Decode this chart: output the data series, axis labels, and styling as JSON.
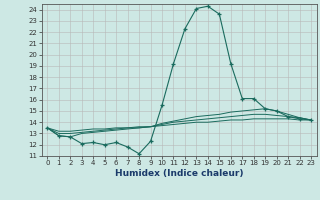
{
  "xlabel": "Humidex (Indice chaleur)",
  "bg_color": "#cde8e4",
  "grid_color": "#b8b8b8",
  "line_color": "#1a6b5e",
  "xlim": [
    -0.5,
    23.5
  ],
  "ylim": [
    11,
    24.5
  ],
  "yticks": [
    11,
    12,
    13,
    14,
    15,
    16,
    17,
    18,
    19,
    20,
    21,
    22,
    23,
    24
  ],
  "xticks": [
    0,
    1,
    2,
    3,
    4,
    5,
    6,
    7,
    8,
    9,
    10,
    11,
    12,
    13,
    14,
    15,
    16,
    17,
    18,
    19,
    20,
    21,
    22,
    23
  ],
  "line1_x": [
    0,
    1,
    2,
    3,
    4,
    5,
    6,
    7,
    8,
    9,
    10,
    11,
    12,
    13,
    14,
    15,
    16,
    17,
    18,
    19,
    20,
    21,
    22,
    23
  ],
  "line1_y": [
    13.5,
    12.8,
    12.7,
    12.1,
    12.2,
    12.0,
    12.2,
    11.8,
    11.2,
    12.3,
    15.5,
    19.2,
    22.3,
    24.1,
    24.3,
    23.6,
    19.2,
    16.1,
    16.1,
    15.2,
    15.0,
    14.5,
    14.3,
    14.2
  ],
  "line2_x": [
    0,
    1,
    2,
    3,
    4,
    5,
    6,
    7,
    8,
    9,
    10,
    11,
    12,
    13,
    14,
    15,
    16,
    17,
    18,
    19,
    20,
    21,
    22,
    23
  ],
  "line2_y": [
    13.5,
    12.8,
    12.7,
    13.0,
    13.1,
    13.2,
    13.3,
    13.4,
    13.5,
    13.6,
    13.9,
    14.1,
    14.3,
    14.5,
    14.6,
    14.7,
    14.9,
    15.0,
    15.1,
    15.2,
    15.0,
    14.7,
    14.4,
    14.2
  ],
  "line3_x": [
    0,
    1,
    2,
    3,
    4,
    5,
    6,
    7,
    8,
    9,
    10,
    11,
    12,
    13,
    14,
    15,
    16,
    17,
    18,
    19,
    20,
    21,
    22,
    23
  ],
  "line3_y": [
    13.5,
    13.0,
    13.0,
    13.1,
    13.2,
    13.3,
    13.4,
    13.5,
    13.5,
    13.6,
    13.8,
    14.0,
    14.1,
    14.2,
    14.3,
    14.4,
    14.5,
    14.6,
    14.7,
    14.7,
    14.6,
    14.5,
    14.4,
    14.2
  ],
  "line4_x": [
    0,
    1,
    2,
    3,
    4,
    5,
    6,
    7,
    8,
    9,
    10,
    11,
    12,
    13,
    14,
    15,
    16,
    17,
    18,
    19,
    20,
    21,
    22,
    23
  ],
  "line4_y": [
    13.5,
    13.2,
    13.2,
    13.3,
    13.4,
    13.4,
    13.5,
    13.5,
    13.6,
    13.6,
    13.7,
    13.8,
    13.9,
    14.0,
    14.0,
    14.1,
    14.2,
    14.2,
    14.3,
    14.3,
    14.3,
    14.3,
    14.2,
    14.2
  ]
}
